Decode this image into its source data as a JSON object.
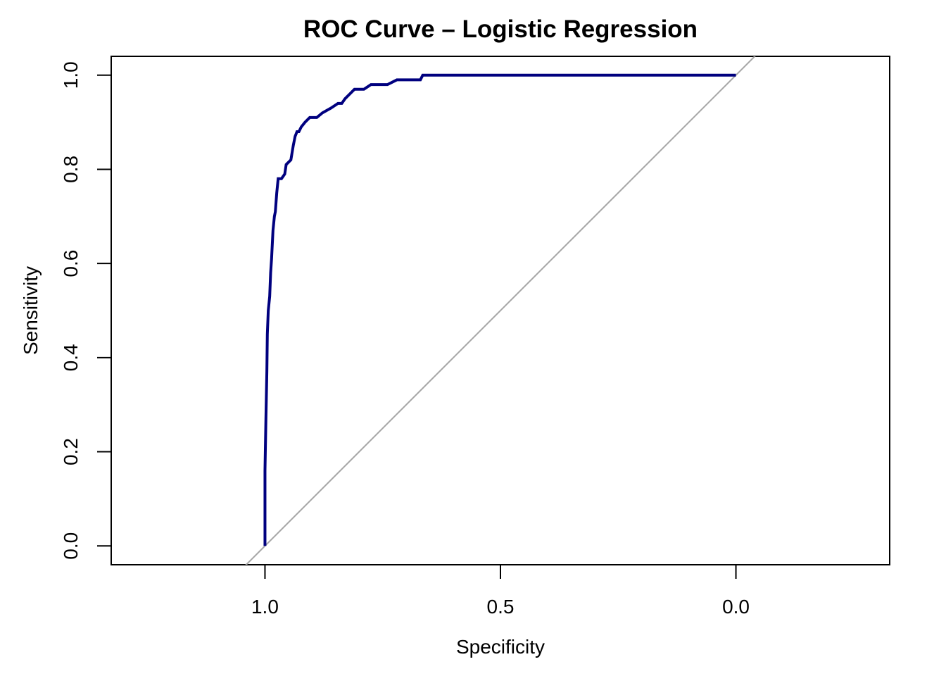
{
  "chart_data": {
    "type": "line",
    "title": "ROC Curve – Logistic Regression",
    "xlabel": "Specificity",
    "ylabel": "Sensitivity",
    "x_reversed": true,
    "xlim": [
      1.3265,
      -0.3265
    ],
    "ylim": [
      -0.04,
      1.04
    ],
    "x_ticks": [
      1.0,
      0.5,
      0.0
    ],
    "x_tick_labels": [
      "1.0",
      "0.5",
      "0.0"
    ],
    "y_ticks": [
      0.0,
      0.2,
      0.4,
      0.6,
      0.8,
      1.0
    ],
    "y_tick_labels": [
      "0.0",
      "0.2",
      "0.4",
      "0.6",
      "0.8",
      "1.0"
    ],
    "grid": false,
    "reference_line": {
      "from": [
        1,
        0
      ],
      "to": [
        0,
        1
      ],
      "color": "#a6a6a6"
    },
    "series": [
      {
        "color": "#00007f",
        "specificity": [
          1.0,
          1.0,
          0.998,
          0.997,
          0.996,
          0.995,
          0.993,
          0.99,
          0.988,
          0.986,
          0.983,
          0.98,
          0.978,
          0.975,
          0.972,
          0.968,
          0.965,
          0.958,
          0.955,
          0.945,
          0.94,
          0.936,
          0.932,
          0.928,
          0.923,
          0.915,
          0.905,
          0.89,
          0.878,
          0.86,
          0.845,
          0.837,
          0.83,
          0.82,
          0.81,
          0.8,
          0.79,
          0.775,
          0.74,
          0.72,
          0.67,
          0.665,
          0.0
        ],
        "sensitivity": [
          0.0,
          0.16,
          0.27,
          0.32,
          0.37,
          0.45,
          0.5,
          0.53,
          0.58,
          0.61,
          0.67,
          0.7,
          0.71,
          0.75,
          0.78,
          0.78,
          0.78,
          0.79,
          0.81,
          0.82,
          0.85,
          0.87,
          0.88,
          0.88,
          0.89,
          0.9,
          0.91,
          0.91,
          0.92,
          0.93,
          0.94,
          0.94,
          0.95,
          0.96,
          0.97,
          0.97,
          0.97,
          0.98,
          0.98,
          0.99,
          0.99,
          1.0,
          1.0
        ]
      }
    ]
  }
}
